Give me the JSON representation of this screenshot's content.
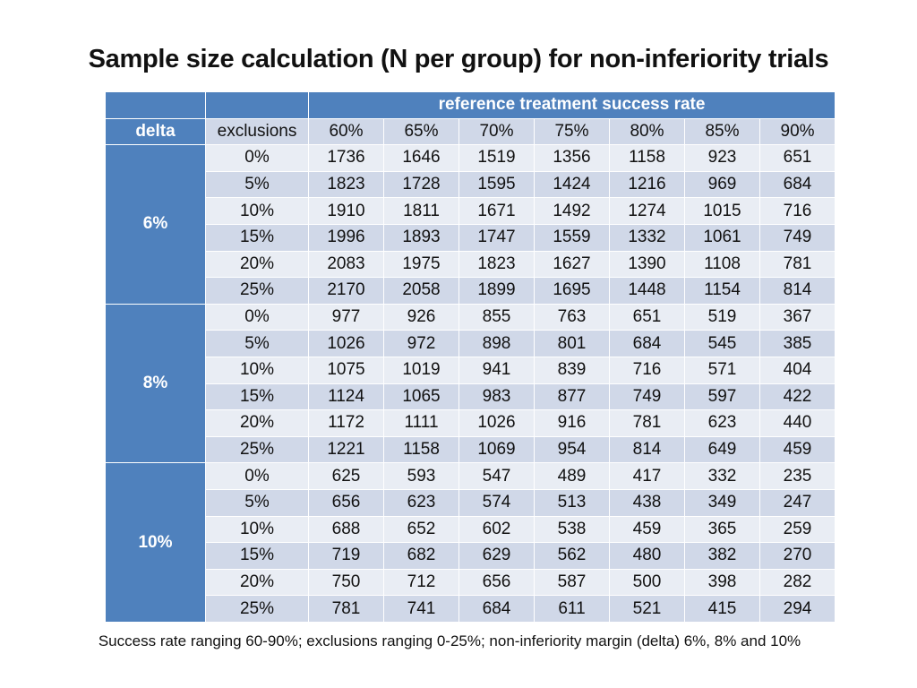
{
  "title": "Sample size calculation (N per group) for non-inferiority trials",
  "table": {
    "group_header": "reference treatment success rate",
    "col_header_delta": "delta",
    "col_header_exclusions": "exclusions",
    "rates": [
      "60%",
      "65%",
      "70%",
      "75%",
      "80%",
      "85%",
      "90%"
    ],
    "exclusions": [
      "0%",
      "5%",
      "10%",
      "15%",
      "20%",
      "25%"
    ],
    "groups": [
      {
        "delta": "6%",
        "rows": [
          [
            "1736",
            "1646",
            "1519",
            "1356",
            "1158",
            "923",
            "651"
          ],
          [
            "1823",
            "1728",
            "1595",
            "1424",
            "1216",
            "969",
            "684"
          ],
          [
            "1910",
            "1811",
            "1671",
            "1492",
            "1274",
            "1015",
            "716"
          ],
          [
            "1996",
            "1893",
            "1747",
            "1559",
            "1332",
            "1061",
            "749"
          ],
          [
            "2083",
            "1975",
            "1823",
            "1627",
            "1390",
            "1108",
            "781"
          ],
          [
            "2170",
            "2058",
            "1899",
            "1695",
            "1448",
            "1154",
            "814"
          ]
        ]
      },
      {
        "delta": "8%",
        "rows": [
          [
            "977",
            "926",
            "855",
            "763",
            "651",
            "519",
            "367"
          ],
          [
            "1026",
            "972",
            "898",
            "801",
            "684",
            "545",
            "385"
          ],
          [
            "1075",
            "1019",
            "941",
            "839",
            "716",
            "571",
            "404"
          ],
          [
            "1124",
            "1065",
            "983",
            "877",
            "749",
            "597",
            "422"
          ],
          [
            "1172",
            "1111",
            "1026",
            "916",
            "781",
            "623",
            "440"
          ],
          [
            "1221",
            "1158",
            "1069",
            "954",
            "814",
            "649",
            "459"
          ]
        ]
      },
      {
        "delta": "10%",
        "rows": [
          [
            "625",
            "593",
            "547",
            "489",
            "417",
            "332",
            "235"
          ],
          [
            "656",
            "623",
            "574",
            "513",
            "438",
            "349",
            "247"
          ],
          [
            "688",
            "652",
            "602",
            "538",
            "459",
            "365",
            "259"
          ],
          [
            "719",
            "682",
            "629",
            "562",
            "480",
            "382",
            "270"
          ],
          [
            "750",
            "712",
            "656",
            "587",
            "500",
            "398",
            "282"
          ],
          [
            "781",
            "741",
            "684",
            "611",
            "521",
            "415",
            "294"
          ]
        ]
      }
    ]
  },
  "footnote": "Success rate ranging 60-90%; exclusions ranging 0-25%; non-inferiority margin (delta) 6%, 8% and 10%",
  "colors": {
    "header_blue": "#4f81bd",
    "row_light": "#e9edf4",
    "row_dark": "#d0d8e8"
  }
}
